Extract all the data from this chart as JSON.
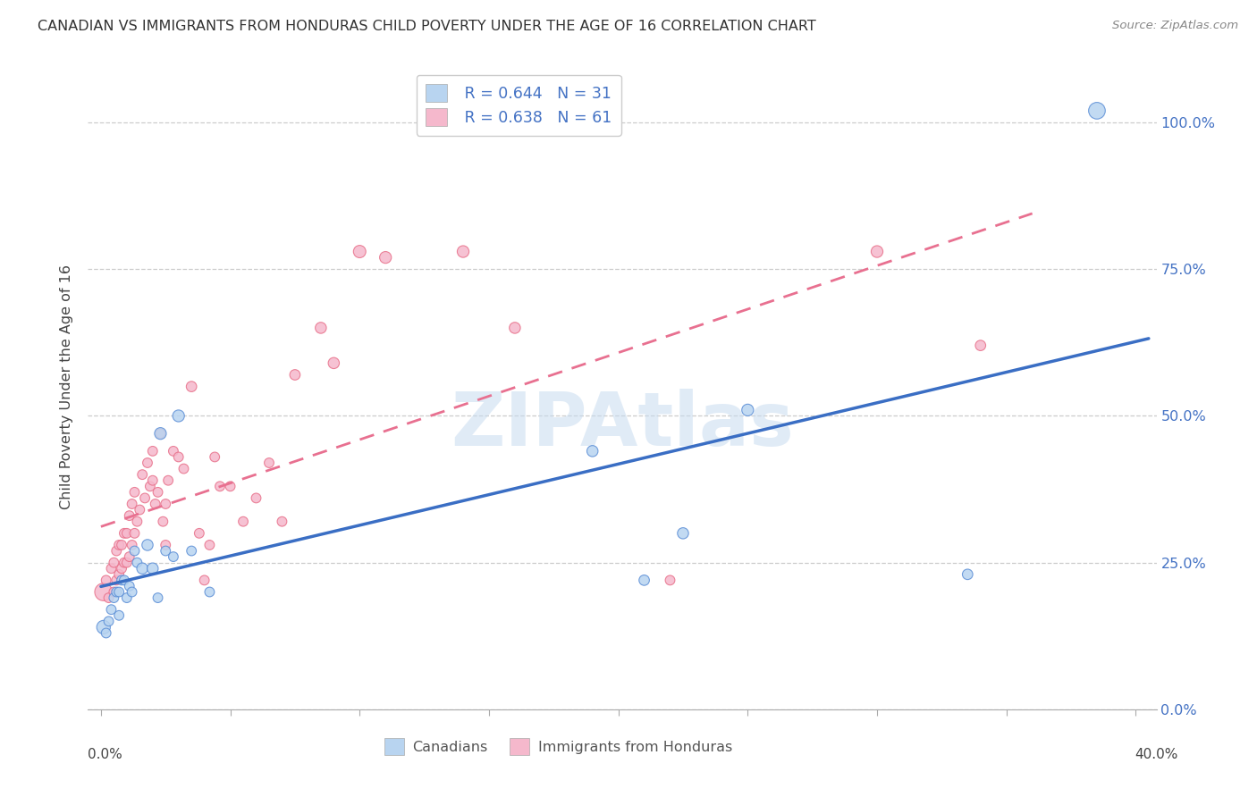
{
  "title": "CANADIAN VS IMMIGRANTS FROM HONDURAS CHILD POVERTY UNDER THE AGE OF 16 CORRELATION CHART",
  "source": "Source: ZipAtlas.com",
  "ylabel": "Child Poverty Under the Age of 16",
  "canadians_R": "0.644",
  "canadians_N": "31",
  "honduras_R": "0.638",
  "honduras_N": "61",
  "canadian_fill": "#B8D4F0",
  "canadian_edge": "#5B8ED6",
  "honduras_fill": "#F5B8CC",
  "honduras_edge": "#E8708A",
  "trendline_canadian": "#3A6EC4",
  "trendline_honduras": "#E87090",
  "watermark_text": "ZIPAtlas",
  "watermark_color": "#C8DCF0",
  "ytick_vals": [
    0.0,
    0.25,
    0.5,
    0.75,
    1.0
  ],
  "ytick_labels": [
    "0.0%",
    "25.0%",
    "50.0%",
    "75.0%",
    "100.0%"
  ],
  "canadians_x": [
    0.001,
    0.002,
    0.003,
    0.004,
    0.005,
    0.006,
    0.007,
    0.007,
    0.008,
    0.009,
    0.01,
    0.011,
    0.012,
    0.013,
    0.014,
    0.016,
    0.018,
    0.02,
    0.022,
    0.023,
    0.025,
    0.028,
    0.03,
    0.035,
    0.042,
    0.19,
    0.21,
    0.225,
    0.25,
    0.335,
    0.385
  ],
  "canadians_y": [
    0.14,
    0.13,
    0.15,
    0.17,
    0.19,
    0.2,
    0.2,
    0.16,
    0.22,
    0.22,
    0.19,
    0.21,
    0.2,
    0.27,
    0.25,
    0.24,
    0.28,
    0.24,
    0.19,
    0.47,
    0.27,
    0.26,
    0.5,
    0.27,
    0.2,
    0.44,
    0.22,
    0.3,
    0.51,
    0.23,
    1.02
  ],
  "canadians_s": [
    120,
    60,
    60,
    60,
    60,
    60,
    60,
    60,
    60,
    60,
    60,
    60,
    60,
    60,
    60,
    80,
    80,
    80,
    60,
    90,
    60,
    60,
    90,
    60,
    60,
    80,
    70,
    80,
    90,
    70,
    180
  ],
  "honduras_x": [
    0.001,
    0.002,
    0.003,
    0.004,
    0.005,
    0.005,
    0.006,
    0.006,
    0.007,
    0.007,
    0.008,
    0.008,
    0.009,
    0.009,
    0.01,
    0.01,
    0.011,
    0.011,
    0.012,
    0.012,
    0.013,
    0.013,
    0.014,
    0.015,
    0.016,
    0.017,
    0.018,
    0.019,
    0.02,
    0.02,
    0.021,
    0.022,
    0.023,
    0.024,
    0.025,
    0.025,
    0.026,
    0.028,
    0.03,
    0.032,
    0.035,
    0.038,
    0.04,
    0.042,
    0.044,
    0.046,
    0.05,
    0.055,
    0.06,
    0.065,
    0.07,
    0.075,
    0.085,
    0.09,
    0.1,
    0.11,
    0.14,
    0.16,
    0.22,
    0.3,
    0.34
  ],
  "honduras_y": [
    0.2,
    0.22,
    0.19,
    0.24,
    0.2,
    0.25,
    0.22,
    0.27,
    0.23,
    0.28,
    0.24,
    0.28,
    0.25,
    0.3,
    0.25,
    0.3,
    0.26,
    0.33,
    0.28,
    0.35,
    0.3,
    0.37,
    0.32,
    0.34,
    0.4,
    0.36,
    0.42,
    0.38,
    0.39,
    0.44,
    0.35,
    0.37,
    0.47,
    0.32,
    0.28,
    0.35,
    0.39,
    0.44,
    0.43,
    0.41,
    0.55,
    0.3,
    0.22,
    0.28,
    0.43,
    0.38,
    0.38,
    0.32,
    0.36,
    0.42,
    0.32,
    0.57,
    0.65,
    0.59,
    0.78,
    0.77,
    0.78,
    0.65,
    0.22,
    0.78,
    0.62
  ],
  "honduras_s": [
    200,
    60,
    60,
    60,
    60,
    60,
    60,
    60,
    60,
    60,
    60,
    60,
    60,
    60,
    60,
    60,
    60,
    60,
    60,
    60,
    60,
    60,
    60,
    60,
    60,
    60,
    60,
    60,
    60,
    60,
    60,
    60,
    60,
    60,
    60,
    60,
    60,
    60,
    60,
    60,
    70,
    60,
    60,
    60,
    60,
    60,
    60,
    60,
    60,
    60,
    60,
    70,
    80,
    80,
    100,
    90,
    90,
    80,
    60,
    90,
    70
  ]
}
